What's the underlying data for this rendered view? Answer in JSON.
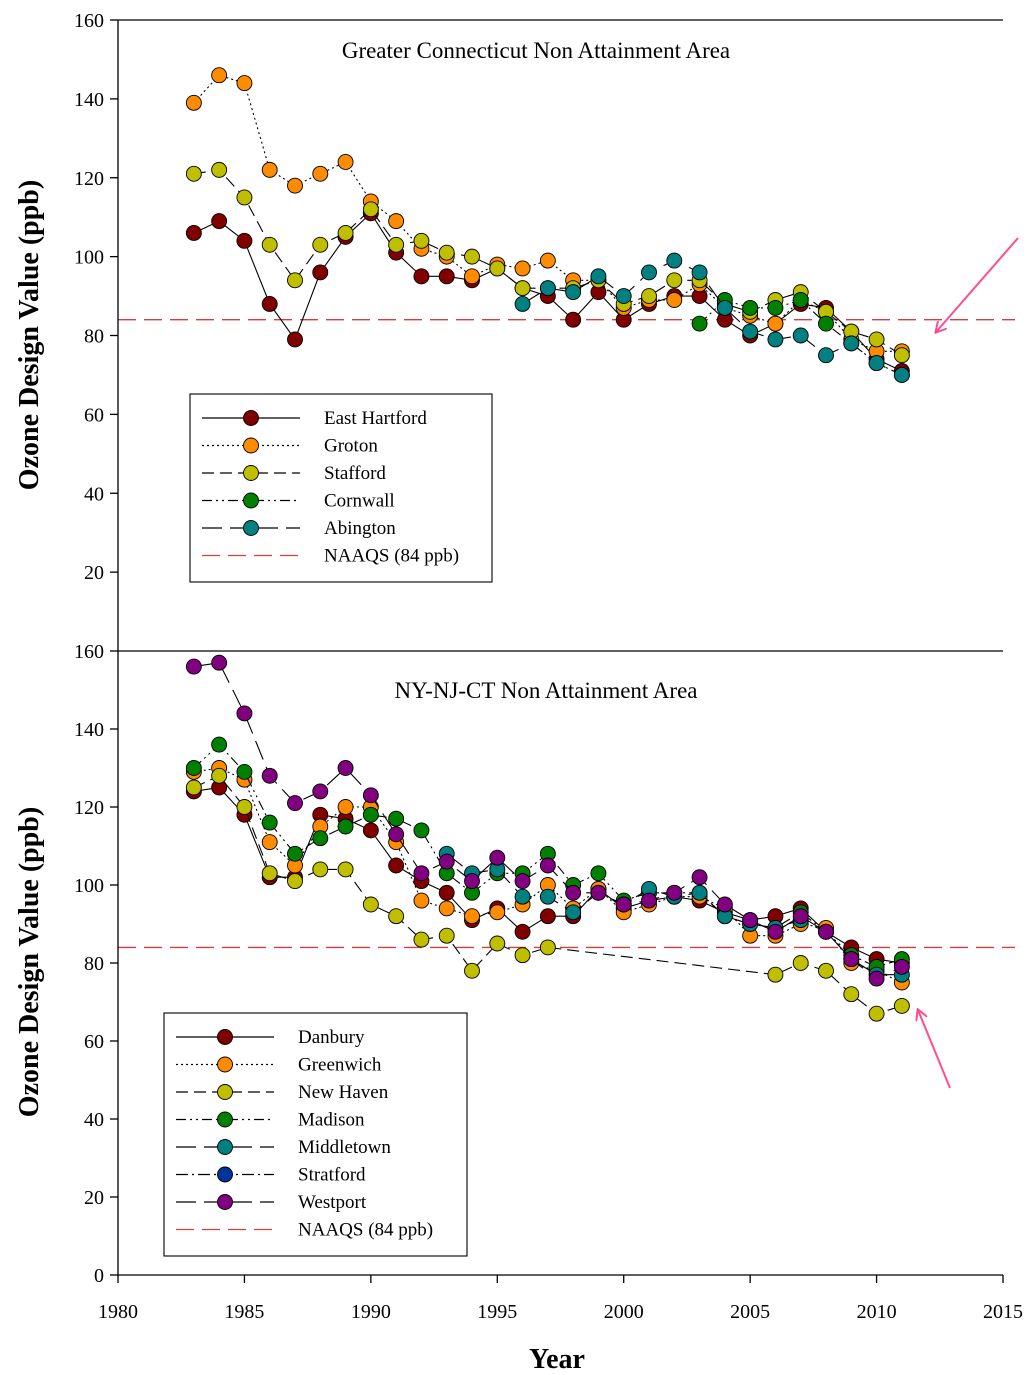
{
  "x_axis": {
    "label": "Year",
    "ticks": [
      1980,
      1985,
      1990,
      1995,
      2000,
      2005,
      2010,
      2015
    ],
    "range": [
      1980,
      2015
    ]
  },
  "y_axis": {
    "label": "Ozone Design Value (ppb)",
    "ticks": [
      0,
      20,
      40,
      60,
      80,
      100,
      120,
      140,
      160
    ],
    "range": [
      0,
      160
    ]
  },
  "colors": {
    "east_hartford": "#800000",
    "groton": "#ff8c00",
    "stafford": "#bfbf00",
    "cornwall": "#008000",
    "abington": "#008080",
    "naaqs": "#d04040",
    "stratford": "#003399",
    "westport": "#800080",
    "arrow": "#ff4d94"
  },
  "chart_data": [
    {
      "type": "line",
      "title": "Greater Connecticut Non Attainment Area",
      "xlabel": "",
      "ylabel": "Ozone Design Value (ppb)",
      "xlim": [
        1980,
        2015
      ],
      "ylim": [
        0,
        160
      ],
      "y_ticks": [
        20,
        40,
        60,
        80,
        100,
        120,
        140,
        160
      ],
      "legend_position": "lower-left",
      "reference_line": {
        "name": "NAAQS (84 ppb)",
        "value": 84
      },
      "series": [
        {
          "name": "East Hartford",
          "color": "#800000",
          "dash": "none",
          "x": [
            1983,
            1984,
            1985,
            1986,
            1987,
            1988,
            1989,
            1990,
            1991,
            1992,
            1993,
            1994,
            1995,
            1996,
            1997,
            1998,
            1999,
            2000,
            2001,
            2002,
            2003,
            2004,
            2005,
            2006,
            2007,
            2008,
            2009,
            2010,
            2011
          ],
          "y": [
            106,
            109,
            104,
            88,
            79,
            96,
            105,
            111,
            101,
            95,
            95,
            94,
            97,
            92,
            90,
            84,
            91,
            84,
            88,
            90,
            90,
            84,
            80,
            83,
            88,
            87,
            81,
            74,
            71
          ]
        },
        {
          "name": "Groton",
          "color": "#ff8c00",
          "dash": "dotted",
          "x": [
            1983,
            1984,
            1985,
            1986,
            1987,
            1988,
            1989,
            1990,
            1991,
            1992,
            1993,
            1994,
            1995,
            1996,
            1997,
            1998,
            1999,
            2000,
            2001,
            2002,
            2003,
            2004,
            2005,
            2006,
            2007,
            2008,
            2009,
            2010,
            2011
          ],
          "y": [
            139,
            146,
            144,
            122,
            118,
            121,
            124,
            114,
            109,
            102,
            100,
            95,
            98,
            97,
            99,
            94,
            94,
            87,
            89,
            89,
            93,
            87,
            85,
            83,
            89,
            86,
            79,
            76,
            76
          ]
        },
        {
          "name": "Stafford",
          "color": "#bfbf00",
          "dash": "dashed",
          "x": [
            1983,
            1984,
            1985,
            1986,
            1987,
            1988,
            1989,
            1990,
            1991,
            1992,
            1993,
            1994,
            1995,
            1996,
            1997,
            1998,
            1999,
            2000,
            2001,
            2002,
            2003,
            2004,
            2005,
            2006,
            2007,
            2008,
            2009,
            2010,
            2011
          ],
          "y": [
            121,
            122,
            115,
            103,
            94,
            103,
            106,
            112,
            103,
            104,
            101,
            100,
            97,
            92,
            92,
            92,
            94,
            88,
            90,
            94,
            94,
            88,
            86,
            89,
            91,
            86,
            81,
            79,
            75
          ]
        },
        {
          "name": "Cornwall",
          "color": "#008000",
          "dash": "dashdotdot",
          "x": [
            2003,
            2004,
            2005,
            2006,
            2007,
            2008,
            2009,
            2010,
            2011
          ],
          "y": [
            83,
            89,
            87,
            87,
            89,
            83,
            78,
            73,
            70
          ]
        },
        {
          "name": "Abington",
          "color": "#008080",
          "dash": "longdash",
          "x": [
            1996,
            1997,
            1998,
            1999,
            2000,
            2001,
            2002,
            2003,
            2004,
            2005,
            2006,
            2007,
            2008,
            2009,
            2010,
            2011
          ],
          "y": [
            88,
            92,
            91,
            95,
            90,
            96,
            99,
            96,
            87,
            81,
            79,
            80,
            75,
            78,
            73,
            70
          ]
        }
      ]
    },
    {
      "type": "line",
      "title": "NY-NJ-CT Non Attainment Area",
      "xlabel": "Year",
      "ylabel": "Ozone Design Value (ppb)",
      "xlim": [
        1980,
        2015
      ],
      "ylim": [
        0,
        160
      ],
      "y_ticks": [
        0,
        20,
        40,
        60,
        80,
        100,
        120,
        140,
        160
      ],
      "legend_position": "lower-left",
      "reference_line": {
        "name": "NAAQS (84 ppb)",
        "value": 84
      },
      "series": [
        {
          "name": "Danbury",
          "color": "#800000",
          "dash": "none",
          "x": [
            1983,
            1984,
            1985,
            1986,
            1987,
            1988,
            1989,
            1990,
            1991,
            1992,
            1993,
            1994,
            1995,
            1996,
            1997,
            1998,
            1999,
            2000,
            2001,
            2002,
            2003,
            2004,
            2005,
            2006,
            2007,
            2008,
            2009,
            2010,
            2011
          ],
          "y": [
            124,
            125,
            118,
            102,
            102,
            118,
            117,
            114,
            105,
            101,
            98,
            91,
            94,
            88,
            92,
            92,
            99,
            94,
            96,
            97,
            96,
            93,
            91,
            92,
            94,
            88,
            84,
            81,
            80
          ]
        },
        {
          "name": "Greenwich",
          "color": "#ff8c00",
          "dash": "dotted",
          "x": [
            1983,
            1984,
            1985,
            1986,
            1987,
            1988,
            1989,
            1990,
            1991,
            1992,
            1993,
            1994,
            1995,
            1996,
            1997,
            1998,
            1999,
            2000,
            2001,
            2002,
            2003,
            2004,
            2005,
            2006,
            2007,
            2008,
            2009,
            2010,
            2011
          ],
          "y": [
            129,
            130,
            127,
            111,
            105,
            115,
            120,
            120,
            111,
            96,
            94,
            92,
            93,
            95,
            100,
            94,
            99,
            93,
            95,
            97,
            97,
            94,
            87,
            87,
            90,
            89,
            80,
            78,
            75
          ]
        },
        {
          "name": "New Haven",
          "color": "#bfbf00",
          "dash": "dashed",
          "x": [
            1983,
            1984,
            1985,
            1986,
            1987,
            1988,
            1989,
            1990,
            1991,
            1992,
            1993,
            1994,
            1995,
            1996,
            1997,
            2006,
            2007,
            2008,
            2009,
            2010,
            2011
          ],
          "y": [
            125,
            128,
            120,
            103,
            101,
            104,
            104,
            95,
            92,
            86,
            87,
            78,
            85,
            82,
            84,
            77,
            80,
            78,
            72,
            67,
            69
          ]
        },
        {
          "name": "Madison",
          "color": "#008000",
          "dash": "dashdotdot",
          "x": [
            1983,
            1984,
            1985,
            1986,
            1987,
            1988,
            1989,
            1990,
            1991,
            1992,
            1993,
            1994,
            1995,
            1996,
            1997,
            1998,
            1999,
            2000,
            2001,
            2002,
            2003,
            2004,
            2005,
            2006,
            2007,
            2008,
            2009,
            2010,
            2011
          ],
          "y": [
            130,
            136,
            129,
            116,
            108,
            112,
            115,
            118,
            117,
            114,
            103,
            98,
            103,
            103,
            108,
            100,
            103,
            96,
            98,
            98,
            98,
            92,
            90,
            89,
            93,
            88,
            82,
            79,
            81
          ]
        },
        {
          "name": "Middletown",
          "color": "#008080",
          "dash": "longdash",
          "x": [
            1993,
            1994,
            1995,
            1996,
            1997,
            1998,
            1999,
            2000,
            2001,
            2002,
            2003,
            2004,
            2005,
            2006,
            2007,
            2008,
            2009,
            2010,
            2011
          ],
          "y": [
            108,
            103,
            104,
            97,
            97,
            93,
            98,
            95,
            99,
            97,
            98,
            92,
            90,
            89,
            91,
            88,
            81,
            77,
            77
          ]
        },
        {
          "name": "Stratford",
          "color": "#003399",
          "dash": "dashdot",
          "x": [],
          "y": []
        },
        {
          "name": "Westport",
          "color": "#800080",
          "dash": "longdash",
          "x": [
            1983,
            1984,
            1985,
            1986,
            1987,
            1988,
            1989,
            1990,
            1991,
            1992,
            1993,
            1994,
            1995,
            1996,
            1997,
            1998,
            1999,
            2000,
            2001,
            2002,
            2003,
            2004,
            2005,
            2006,
            2007,
            2008,
            2009,
            2010,
            2011
          ],
          "y": [
            156,
            157,
            144,
            128,
            121,
            124,
            130,
            123,
            113,
            103,
            106,
            101,
            107,
            101,
            105,
            98,
            98,
            95,
            96,
            98,
            102,
            95,
            91,
            88,
            92,
            88,
            81,
            76,
            79
          ]
        }
      ]
    }
  ]
}
